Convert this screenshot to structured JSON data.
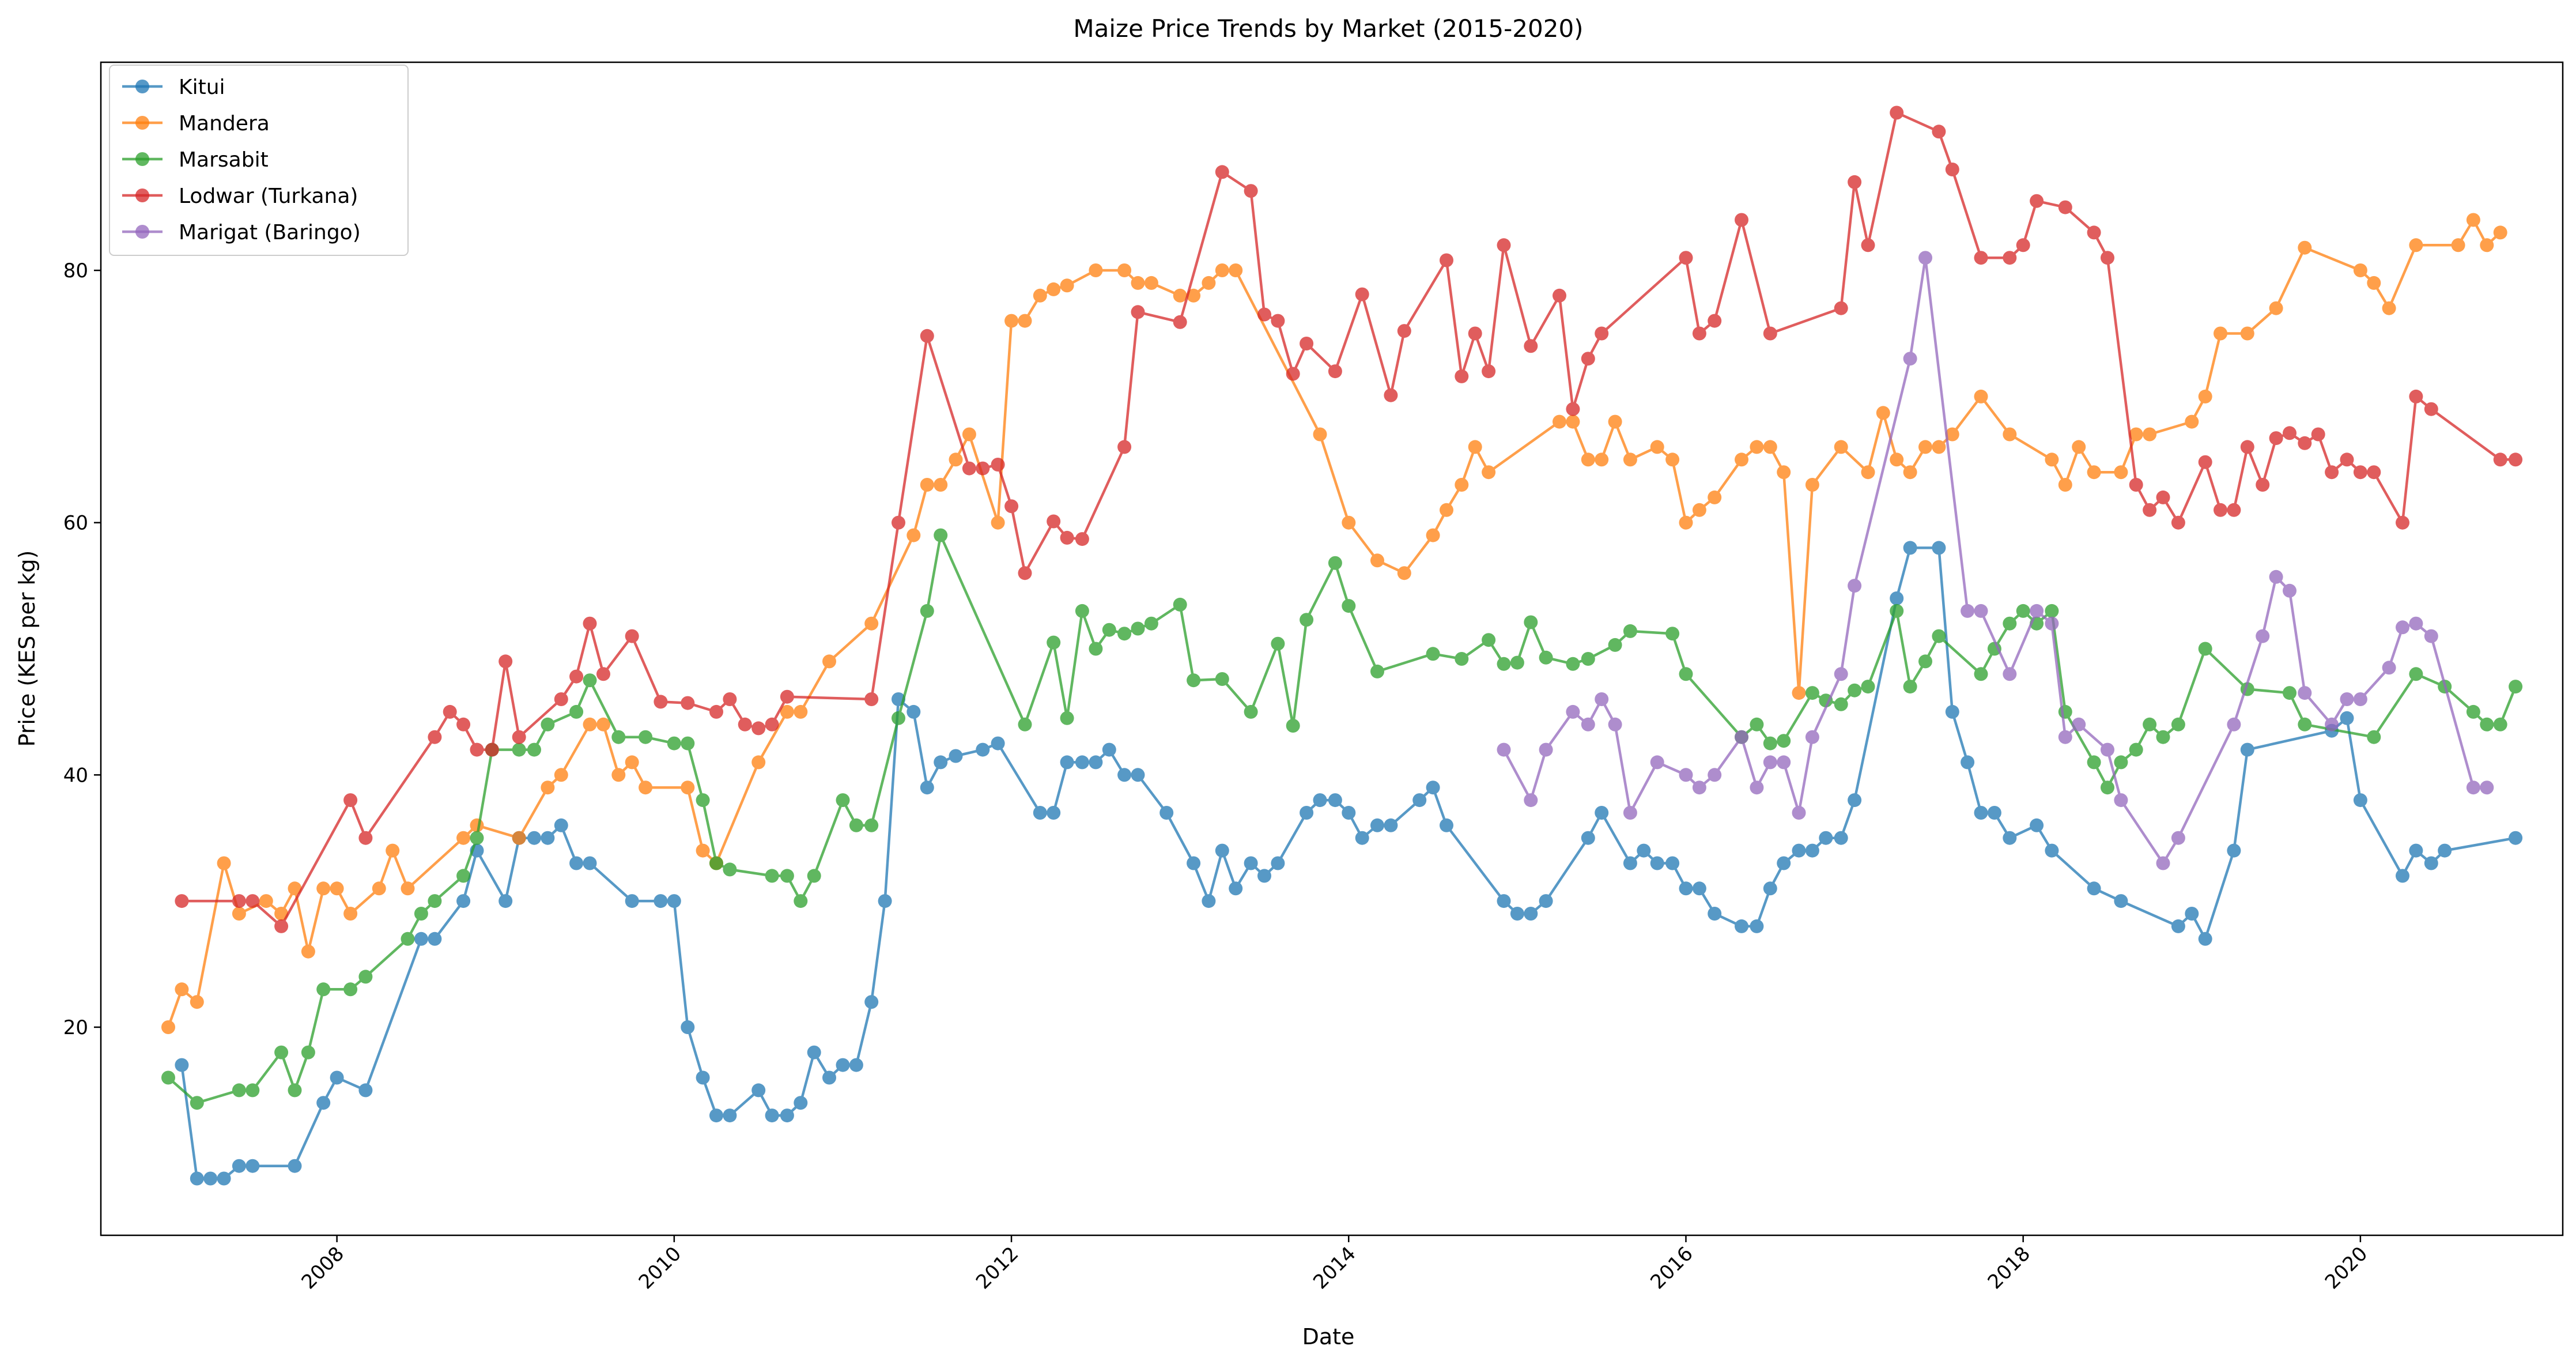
{
  "chart_data": {
    "type": "line",
    "title": "Maize Price Trends by Market (2015-2020)",
    "xlabel": "Date",
    "ylabel": "Price (KES per kg)",
    "xlim": [
      2006.6,
      2021.2
    ],
    "ylim": [
      3.5,
      96.5
    ],
    "xticks": [
      2008,
      2010,
      2012,
      2014,
      2016,
      2018,
      2020
    ],
    "xtick_labels": [
      "2008",
      "2010",
      "2012",
      "2014",
      "2016",
      "2018",
      "2020"
    ],
    "yticks": [
      20,
      40,
      60,
      80
    ],
    "ytick_labels": [
      "20",
      "40",
      "60",
      "80"
    ],
    "grid": false,
    "legend": "top-left",
    "series": [
      {
        "name": "Kitui",
        "color": "#1f77b4",
        "x": [
          2007.08,
          2007.17,
          2007.25,
          2007.33,
          2007.42,
          2007.5,
          2007.75,
          2007.92,
          2008.0,
          2008.17,
          2008.5,
          2008.58,
          2008.75,
          2008.83,
          2009.0,
          2009.08,
          2009.17,
          2009.25,
          2009.33,
          2009.42,
          2009.5,
          2009.75,
          2009.92,
          2010.0,
          2010.08,
          2010.17,
          2010.25,
          2010.33,
          2010.5,
          2010.58,
          2010.67,
          2010.75,
          2010.83,
          2010.92,
          2011.0,
          2011.08,
          2011.17,
          2011.25,
          2011.33,
          2011.42,
          2011.5,
          2011.58,
          2011.67,
          2011.83,
          2011.92,
          2012.17,
          2012.25,
          2012.33,
          2012.42,
          2012.5,
          2012.58,
          2012.67,
          2012.75,
          2012.92,
          2013.08,
          2013.17,
          2013.25,
          2013.33,
          2013.42,
          2013.5,
          2013.58,
          2013.75,
          2013.83,
          2013.92,
          2014.0,
          2014.08,
          2014.17,
          2014.25,
          2014.42,
          2014.5,
          2014.58,
          2014.92,
          2015.0,
          2015.08,
          2015.17,
          2015.42,
          2015.5,
          2015.67,
          2015.75,
          2015.83,
          2015.92,
          2016.0,
          2016.08,
          2016.17,
          2016.33,
          2016.42,
          2016.5,
          2016.58,
          2016.67,
          2016.75,
          2016.83,
          2016.92,
          2017.0,
          2017.25,
          2017.33,
          2017.5,
          2017.58,
          2017.67,
          2017.75,
          2017.83,
          2017.92,
          2018.08,
          2018.17,
          2018.42,
          2018.58,
          2018.92,
          2019.0,
          2019.08,
          2019.25,
          2019.33,
          2019.83,
          2019.92,
          2020.0,
          2020.25,
          2020.33,
          2020.42,
          2020.5,
          2020.92
        ],
        "y": [
          17,
          8,
          8,
          8,
          9,
          9,
          9,
          14,
          16,
          15,
          27,
          27,
          30,
          34,
          30,
          35,
          35,
          35,
          36,
          33,
          33,
          30,
          30,
          30,
          20,
          16,
          13,
          13,
          15,
          13,
          13,
          14,
          18,
          16,
          17,
          17,
          22,
          30,
          46,
          45,
          39,
          41,
          41.5,
          42,
          42.5,
          37,
          37,
          41,
          41,
          41,
          42,
          40,
          40,
          37,
          33,
          30,
          34,
          31,
          33,
          32,
          33,
          37,
          38,
          38,
          37,
          35,
          36,
          36,
          38,
          39,
          36,
          30,
          29,
          29,
          30,
          35,
          37,
          33,
          34,
          33,
          33,
          31,
          31,
          29,
          28,
          28,
          31,
          33,
          34,
          34,
          35,
          35,
          38,
          54,
          58,
          58,
          45,
          41,
          37,
          37,
          35,
          36,
          34,
          31,
          30,
          28,
          29,
          27,
          34,
          42,
          43.5,
          44.5,
          38,
          32,
          34,
          33,
          34,
          35
        ]
      },
      {
        "name": "Mandera",
        "color": "#ff7f0e",
        "x": [
          2007.0,
          2007.08,
          2007.17,
          2007.33,
          2007.42,
          2007.58,
          2007.67,
          2007.75,
          2007.83,
          2007.92,
          2008.0,
          2008.08,
          2008.25,
          2008.33,
          2008.42,
          2008.75,
          2008.83,
          2009.08,
          2009.25,
          2009.33,
          2009.5,
          2009.58,
          2009.67,
          2009.75,
          2009.83,
          2010.08,
          2010.17,
          2010.25,
          2010.5,
          2010.67,
          2010.75,
          2010.92,
          2011.17,
          2011.42,
          2011.5,
          2011.58,
          2011.67,
          2011.75,
          2011.92,
          2012.0,
          2012.08,
          2012.17,
          2012.25,
          2012.33,
          2012.5,
          2012.67,
          2012.75,
          2012.83,
          2013.0,
          2013.08,
          2013.17,
          2013.25,
          2013.33,
          2013.83,
          2014.0,
          2014.17,
          2014.33,
          2014.5,
          2014.58,
          2014.67,
          2014.75,
          2014.83,
          2015.25,
          2015.33,
          2015.42,
          2015.5,
          2015.58,
          2015.67,
          2015.83,
          2015.92,
          2016.0,
          2016.08,
          2016.17,
          2016.33,
          2016.42,
          2016.5,
          2016.58,
          2016.67,
          2016.75,
          2016.92,
          2017.08,
          2017.17,
          2017.25,
          2017.33,
          2017.42,
          2017.5,
          2017.58,
          2017.75,
          2017.92,
          2018.17,
          2018.25,
          2018.33,
          2018.42,
          2018.58,
          2018.67,
          2018.75,
          2019.0,
          2019.08,
          2019.17,
          2019.33,
          2019.5,
          2019.67,
          2020.0,
          2020.08,
          2020.17,
          2020.33,
          2020.58,
          2020.67,
          2020.75,
          2020.83
        ],
        "y": [
          20,
          23,
          22,
          33,
          29,
          30,
          29,
          31,
          26,
          31,
          31,
          29,
          31,
          34,
          31,
          35,
          36,
          35,
          39,
          40,
          44,
          44,
          40,
          41,
          39,
          39,
          34,
          33,
          41,
          45,
          45,
          49,
          52,
          59,
          63,
          63,
          65,
          67,
          60,
          76,
          76,
          78,
          78.5,
          78.8,
          80,
          80,
          79,
          79,
          78,
          78,
          79,
          80,
          80,
          67,
          60,
          57,
          56,
          59,
          61,
          63,
          66,
          64,
          68,
          68,
          65,
          65,
          68,
          65,
          66,
          65,
          60,
          61,
          62,
          65,
          66,
          66,
          64,
          46.5,
          63,
          66,
          64,
          68.7,
          65,
          64,
          66,
          66,
          67,
          70,
          67,
          65,
          63,
          66,
          64,
          64,
          67,
          67,
          68,
          70,
          75,
          75,
          77,
          81.8,
          80,
          79,
          77,
          82,
          82,
          84,
          82,
          83
        ]
      },
      {
        "name": "Marsabit",
        "color": "#2ca02c",
        "x": [
          2007.0,
          2007.17,
          2007.42,
          2007.5,
          2007.67,
          2007.75,
          2007.83,
          2007.92,
          2008.08,
          2008.17,
          2008.42,
          2008.5,
          2008.58,
          2008.75,
          2008.83,
          2008.92,
          2009.08,
          2009.17,
          2009.25,
          2009.42,
          2009.5,
          2009.67,
          2009.83,
          2010.0,
          2010.08,
          2010.17,
          2010.25,
          2010.33,
          2010.58,
          2010.67,
          2010.75,
          2010.83,
          2011.0,
          2011.08,
          2011.17,
          2011.33,
          2011.5,
          2011.58,
          2012.08,
          2012.25,
          2012.33,
          2012.42,
          2012.5,
          2012.58,
          2012.67,
          2012.75,
          2012.83,
          2013.0,
          2013.08,
          2013.25,
          2013.42,
          2013.58,
          2013.67,
          2013.75,
          2013.92,
          2014.0,
          2014.17,
          2014.5,
          2014.67,
          2014.83,
          2014.92,
          2015.0,
          2015.08,
          2015.17,
          2015.33,
          2015.42,
          2015.58,
          2015.67,
          2015.92,
          2016.0,
          2016.33,
          2016.42,
          2016.5,
          2016.58,
          2016.75,
          2016.83,
          2016.92,
          2017.0,
          2017.08,
          2017.25,
          2017.33,
          2017.42,
          2017.5,
          2017.75,
          2017.83,
          2017.92,
          2018.0,
          2018.08,
          2018.17,
          2018.25,
          2018.42,
          2018.5,
          2018.58,
          2018.67,
          2018.75,
          2018.83,
          2018.92,
          2019.08,
          2019.33,
          2019.58,
          2019.67,
          2020.08,
          2020.33,
          2020.5,
          2020.67,
          2020.75,
          2020.83,
          2020.92
        ],
        "y": [
          16,
          14,
          15,
          15,
          18,
          15,
          18,
          23,
          23,
          24,
          27,
          29,
          30,
          32,
          35,
          42,
          42,
          42,
          44,
          45,
          47.5,
          43,
          43,
          42.5,
          42.5,
          38,
          33,
          32.5,
          32,
          32,
          30,
          32,
          38,
          36,
          36,
          44.5,
          53,
          59,
          44,
          50.5,
          44.5,
          53,
          50,
          51.5,
          51.2,
          51.6,
          52,
          53.5,
          47.5,
          47.6,
          45,
          50.4,
          43.9,
          52.3,
          56.8,
          53.4,
          48.2,
          49.6,
          49.2,
          50.7,
          48.8,
          48.9,
          52.1,
          49.3,
          48.8,
          49.2,
          50.3,
          51.4,
          51.2,
          48,
          43,
          44,
          42.5,
          42.7,
          46.5,
          45.9,
          45.6,
          46.7,
          47,
          53,
          47,
          49,
          51,
          48,
          50,
          52,
          53,
          52,
          53,
          45,
          41,
          39,
          41,
          42,
          44,
          43,
          44,
          50,
          46.8,
          46.5,
          44,
          43,
          48,
          47,
          45,
          44,
          44,
          47
        ]
      },
      {
        "name": "Lodwar (Turkana)",
        "color": "#d62728",
        "x": [
          2007.08,
          2007.42,
          2007.5,
          2007.67,
          2008.08,
          2008.17,
          2008.58,
          2008.67,
          2008.75,
          2008.83,
          2008.92,
          2009.0,
          2009.08,
          2009.33,
          2009.42,
          2009.5,
          2009.58,
          2009.75,
          2009.92,
          2010.08,
          2010.25,
          2010.33,
          2010.42,
          2010.5,
          2010.58,
          2010.67,
          2011.17,
          2011.33,
          2011.5,
          2011.75,
          2011.83,
          2011.92,
          2012.0,
          2012.08,
          2012.25,
          2012.33,
          2012.42,
          2012.67,
          2012.75,
          2013.0,
          2013.25,
          2013.42,
          2013.5,
          2013.58,
          2013.67,
          2013.75,
          2013.92,
          2014.08,
          2014.25,
          2014.33,
          2014.58,
          2014.67,
          2014.75,
          2014.83,
          2014.92,
          2015.08,
          2015.25,
          2015.33,
          2015.42,
          2015.5,
          2016.0,
          2016.08,
          2016.17,
          2016.33,
          2016.5,
          2016.92,
          2017.0,
          2017.08,
          2017.25,
          2017.5,
          2017.58,
          2017.75,
          2017.92,
          2018.0,
          2018.08,
          2018.25,
          2018.42,
          2018.5,
          2018.67,
          2018.75,
          2018.83,
          2018.92,
          2019.08,
          2019.17,
          2019.25,
          2019.33,
          2019.42,
          2019.5,
          2019.58,
          2019.67,
          2019.75,
          2019.83,
          2019.92,
          2020.0,
          2020.08,
          2020.25,
          2020.33,
          2020.42,
          2020.83,
          2020.92
        ],
        "y": [
          30,
          30,
          30,
          28,
          38,
          35,
          43,
          45,
          44,
          42,
          42,
          49,
          43,
          46,
          47.8,
          52,
          48,
          51,
          45.8,
          45.7,
          45,
          46,
          44,
          43.7,
          44,
          46.2,
          46,
          60,
          74.8,
          64.3,
          64.3,
          64.6,
          61.3,
          56,
          60.1,
          58.8,
          58.7,
          66,
          76.7,
          75.9,
          87.8,
          86.3,
          76.5,
          76,
          71.8,
          74.2,
          72,
          78.1,
          70.1,
          75.2,
          80.8,
          71.6,
          75,
          72,
          82,
          74,
          78,
          69,
          73,
          75,
          81,
          75,
          76,
          84,
          75,
          77,
          87,
          82,
          92.5,
          91,
          88,
          81,
          81,
          82,
          85.5,
          85,
          83,
          81,
          63,
          61,
          62,
          60,
          64.8,
          61,
          61,
          66,
          63,
          66.7,
          67.1,
          66.3,
          67,
          64,
          65,
          64,
          64,
          60,
          70,
          69,
          65,
          65
        ]
      },
      {
        "name": "Marigat (Baringo)",
        "color": "#9467bd",
        "x": [
          2014.92,
          2015.08,
          2015.17,
          2015.33,
          2015.42,
          2015.5,
          2015.58,
          2015.67,
          2015.83,
          2016.0,
          2016.08,
          2016.17,
          2016.33,
          2016.42,
          2016.5,
          2016.58,
          2016.67,
          2016.75,
          2016.92,
          2017.0,
          2017.33,
          2017.42,
          2017.67,
          2017.75,
          2017.92,
          2018.08,
          2018.17,
          2018.25,
          2018.33,
          2018.5,
          2018.58,
          2018.83,
          2018.92,
          2019.25,
          2019.42,
          2019.5,
          2019.58,
          2019.67,
          2019.83,
          2019.92,
          2020.0,
          2020.17,
          2020.25,
          2020.33,
          2020.42,
          2020.67,
          2020.75
        ],
        "y": [
          42,
          38,
          42,
          45,
          44,
          46,
          44,
          37,
          41,
          40,
          39,
          40,
          43,
          39,
          41,
          41,
          37,
          43,
          48,
          55,
          73,
          81,
          53,
          53,
          48,
          53,
          52,
          43,
          44,
          42,
          38,
          33,
          35,
          44,
          51,
          55.7,
          54.6,
          46.5,
          44,
          46,
          46,
          48.5,
          51.7,
          52,
          51,
          39,
          39
        ]
      }
    ]
  }
}
